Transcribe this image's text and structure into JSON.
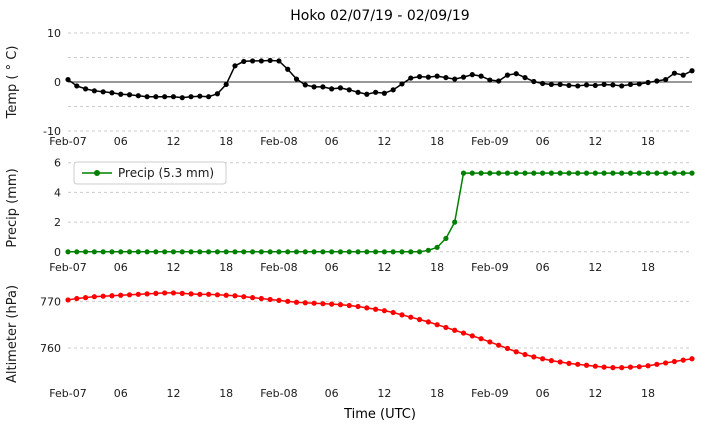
{
  "chart_data": {
    "type": "line",
    "title": "Hoko 02/07/19 - 02/09/19",
    "xlabel": "Time (UTC)",
    "x_unit": "hours since Feb-07 00:00 UTC",
    "grid_color": "#cccccc",
    "grid_style": "dashed",
    "x_ticks": [
      {
        "hour": 0,
        "label": "Feb-07"
      },
      {
        "hour": 6,
        "label": "06"
      },
      {
        "hour": 12,
        "label": "12"
      },
      {
        "hour": 18,
        "label": "18"
      },
      {
        "hour": 24,
        "label": "Feb-08"
      },
      {
        "hour": 30,
        "label": "06"
      },
      {
        "hour": 36,
        "label": "12"
      },
      {
        "hour": 42,
        "label": "18"
      },
      {
        "hour": 48,
        "label": "Feb-09"
      },
      {
        "hour": 54,
        "label": "06"
      },
      {
        "hour": 60,
        "label": "12"
      },
      {
        "hour": 66,
        "label": "18"
      }
    ],
    "subplots": [
      {
        "name": "temp",
        "ylabel": "Temp ( ° C)",
        "color": "#000000",
        "ylim": [
          -10,
          10
        ],
        "yticks": [
          -10,
          0,
          10
        ],
        "grid": [
          -10,
          -5,
          5,
          10
        ],
        "zero_line": true,
        "values": [
          0.5,
          -0.8,
          -1.4,
          -1.8,
          -2.0,
          -2.2,
          -2.5,
          -2.6,
          -2.8,
          -3.0,
          -3.0,
          -3.0,
          -3.0,
          -3.2,
          -3.0,
          -2.9,
          -3.0,
          -2.4,
          -0.5,
          3.3,
          4.2,
          4.3,
          4.3,
          4.4,
          4.3,
          2.6,
          0.6,
          -0.6,
          -1.0,
          -1.0,
          -1.4,
          -1.2,
          -1.6,
          -2.1,
          -2.5,
          -2.1,
          -2.3,
          -1.6,
          -0.4,
          0.8,
          1.1,
          1.0,
          1.2,
          0.9,
          0.6,
          1.0,
          1.5,
          1.2,
          0.4,
          0.2,
          1.4,
          1.7,
          0.9,
          0.1,
          -0.3,
          -0.5,
          -0.5,
          -0.7,
          -0.8,
          -0.6,
          -0.7,
          -0.5,
          -0.6,
          -0.8,
          -0.5,
          -0.4,
          -0.1,
          0.2,
          0.5,
          1.8,
          1.4,
          2.3
        ]
      },
      {
        "name": "precip",
        "ylabel": "Precip (mm)",
        "color": "#008000",
        "ylim": [
          -0.35,
          6.25
        ],
        "yticks": [
          0,
          2,
          4,
          6
        ],
        "grid": [
          0,
          2,
          4,
          6
        ],
        "zero_line": false,
        "legend": "Precip (5.3 mm)",
        "values": [
          0,
          0,
          0,
          0,
          0,
          0,
          0,
          0,
          0,
          0,
          0,
          0,
          0,
          0,
          0,
          0,
          0,
          0,
          0,
          0,
          0,
          0,
          0,
          0,
          0,
          0,
          0,
          0,
          0,
          0,
          0,
          0,
          0,
          0,
          0,
          0,
          0,
          0,
          0,
          0,
          0,
          0.1,
          0.3,
          0.9,
          2.0,
          5.3,
          5.3,
          5.3,
          5.3,
          5.3,
          5.3,
          5.3,
          5.3,
          5.3,
          5.3,
          5.3,
          5.3,
          5.3,
          5.3,
          5.3,
          5.3,
          5.3,
          5.3,
          5.3,
          5.3,
          5.3,
          5.3,
          5.3,
          5.3,
          5.3,
          5.3,
          5.3
        ]
      },
      {
        "name": "altimeter",
        "ylabel": "Altimeter (hPa)",
        "color": "#ff0000",
        "ylim": [
          752.5,
          773.5
        ],
        "yticks": [
          760,
          770
        ],
        "grid": [
          760,
          770
        ],
        "zero_line": false,
        "values": [
          770.3,
          770.6,
          770.8,
          771.0,
          771.1,
          771.2,
          771.3,
          771.4,
          771.5,
          771.6,
          771.7,
          771.8,
          771.8,
          771.7,
          771.6,
          771.5,
          771.5,
          771.4,
          771.3,
          771.2,
          771.0,
          770.8,
          770.6,
          770.4,
          770.2,
          770.0,
          769.8,
          769.7,
          769.6,
          769.5,
          769.4,
          769.3,
          769.1,
          768.9,
          768.6,
          768.3,
          768.0,
          767.6,
          767.1,
          766.6,
          766.1,
          765.6,
          765.0,
          764.4,
          763.8,
          763.2,
          762.6,
          762.0,
          761.3,
          760.6,
          759.9,
          759.2,
          758.6,
          758.1,
          757.7,
          757.3,
          757.0,
          756.7,
          756.5,
          756.3,
          756.1,
          755.9,
          755.8,
          755.8,
          755.9,
          756.0,
          756.2,
          756.5,
          756.8,
          757.1,
          757.4,
          757.7
        ]
      }
    ]
  }
}
